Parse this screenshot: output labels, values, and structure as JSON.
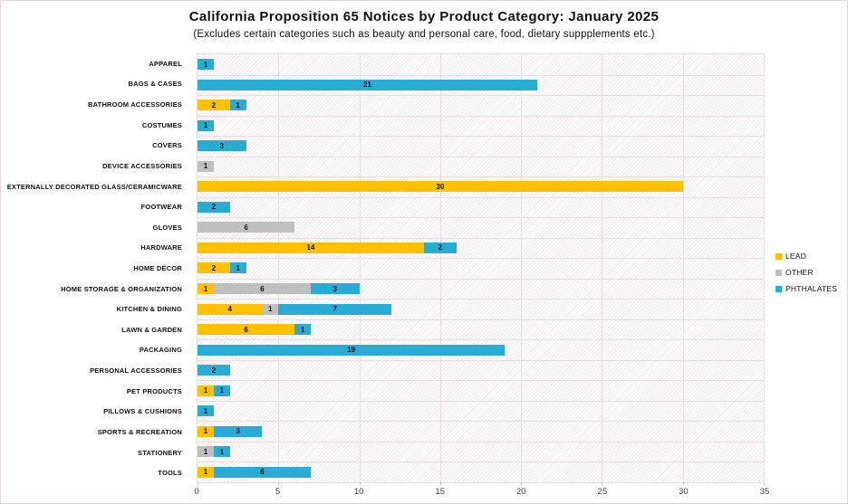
{
  "chart_data": {
    "type": "bar",
    "orientation": "horizontal",
    "stacked": true,
    "title": "California Proposition 65 Notices by Product Category: January 2025",
    "subtitle": "(Excludes certain categories such as beauty and personal care, food, dietary suppplements etc.)",
    "xlim": [
      0,
      35
    ],
    "xticks": [
      0,
      5,
      10,
      15,
      20,
      25,
      30,
      35
    ],
    "grid": true,
    "legend_position": "right",
    "categories": [
      "APPAREL",
      "BAGS & CASES",
      "BATHROOM ACCESSORIES",
      "COSTUMES",
      "COVERS",
      "DEVICE ACCESSORIES",
      "EXTERNALLY DECORATED GLASS/CERAMICWARE",
      "FOOTWEAR",
      "GLOVES",
      "HARDWARE",
      "HOME DÉCOR",
      "HOME STORAGE & ORGANIZATION",
      "KITCHEN & DINING",
      "LAWN & GARDEN",
      "PACKAGING",
      "PERSONAL ACCESSORIES",
      "PET PRODUCTS",
      "PILLOWS & CUSHIONS",
      "SPORTS & RECREATION",
      "STATIONERY",
      "TOOLS"
    ],
    "series": [
      {
        "name": "LEAD",
        "color": "#FFC000",
        "values": [
          0,
          0,
          2,
          0,
          0,
          0,
          30,
          0,
          0,
          14,
          2,
          1,
          4,
          6,
          0,
          0,
          1,
          0,
          1,
          0,
          1
        ]
      },
      {
        "name": "OTHER",
        "color": "#BFBFBF",
        "values": [
          0,
          0,
          0,
          0,
          0,
          1,
          0,
          0,
          6,
          0,
          0,
          6,
          1,
          0,
          0,
          0,
          0,
          0,
          0,
          1,
          0
        ]
      },
      {
        "name": "PHTHALATES",
        "color": "#29ACD4",
        "values": [
          1,
          21,
          1,
          1,
          3,
          0,
          0,
          2,
          0,
          2,
          1,
          3,
          7,
          1,
          19,
          2,
          1,
          1,
          3,
          1,
          6
        ]
      }
    ]
  }
}
